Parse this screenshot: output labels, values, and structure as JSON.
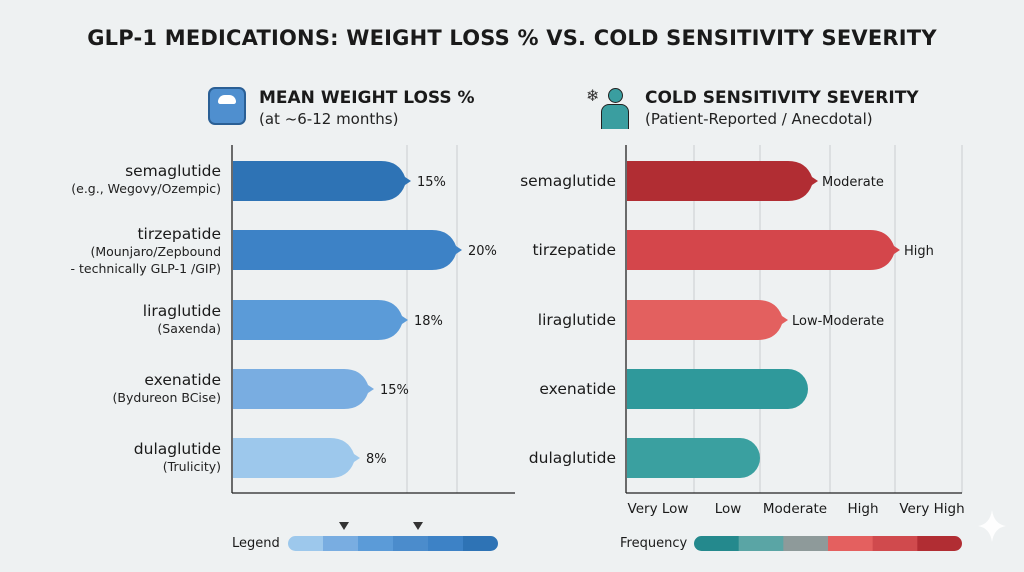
{
  "title": "GLP-1 MEDICATIONS: WEIGHT LOSS % VS. COLD SENSITIVITY SEVERITY",
  "chart_data": [
    {
      "type": "bar",
      "orientation": "horizontal",
      "title": "MEAN WEIGHT LOSS %",
      "subtitle": "(at ~6-12 months)",
      "icon": "scale-icon",
      "categories": [
        "semaglutide",
        "tirzepatide",
        "liraglutide",
        "exenatide",
        "dulaglutide"
      ],
      "category_notes": [
        "(e.g., Wegovy/Ozempic)",
        "(Mounjaro/Zepbound",
        "(Saxenda)",
        "(Bydureon BCise)",
        "(Trulicity)"
      ],
      "category_notes_2": [
        "",
        "- technically GLP-1 /GIP)",
        "",
        "",
        ""
      ],
      "values": [
        15,
        20,
        18,
        15,
        8
      ],
      "data_labels": [
        "15%",
        "20%",
        "18%",
        "15%",
        "8%"
      ],
      "colors": [
        "#2e73b5",
        "#3d82c6",
        "#5b9bd8",
        "#79ade1",
        "#9dc8ec"
      ],
      "grid": true,
      "legend": {
        "label": "Legend",
        "colors": [
          "#9dc8ec",
          "#79ade1",
          "#5b9bd8",
          "#4b8ccc",
          "#3d82c6",
          "#2e73b5"
        ],
        "placement": "bottom"
      }
    },
    {
      "type": "bar",
      "orientation": "horizontal",
      "title": "COLD SENSITIVITY SEVERITY",
      "subtitle": "(Patient-Reported / Anecdotal)",
      "icon": "cold-person-icon",
      "categories": [
        "semaglutide",
        "tirzepatide",
        "liraglutide",
        "exenatide",
        "dulaglutide"
      ],
      "values": [
        "Moderate",
        "High",
        "Low-Moderate",
        "",
        ""
      ],
      "data_labels": [
        "Moderate",
        "High",
        "Low-Moderate",
        "",
        ""
      ],
      "x_ticks": [
        "Very Low",
        "Low",
        "Moderate",
        "High",
        "Very High"
      ],
      "colors": [
        "#b12d33",
        "#d4464b",
        "#e3605f",
        "#2f999b",
        "#3aa0a0"
      ],
      "grid": true,
      "legend": {
        "label": "Frequency",
        "colors": [
          "#24898d",
          "#5aa5a5",
          "#8e9a9a",
          "#e4605f",
          "#d04a4d",
          "#b12d33"
        ],
        "placement": "bottom"
      }
    }
  ]
}
